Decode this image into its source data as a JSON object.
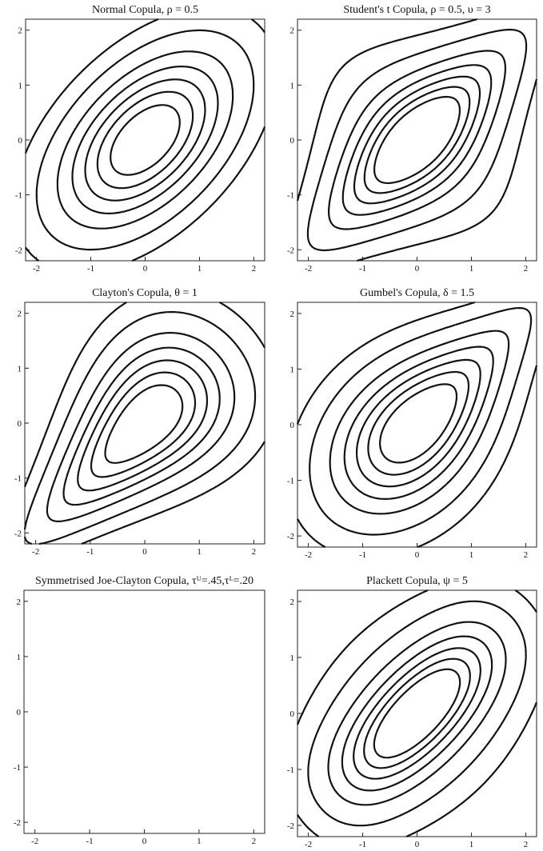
{
  "chart_data": [
    {
      "type": "contour",
      "family": "normal",
      "title": "Normal Copula, ρ = 0.5",
      "params": {
        "rho": 0.5
      },
      "xlim": [
        -2.2,
        2.2
      ],
      "ylim": [
        -2.2,
        2.2
      ],
      "xticks": [
        -2,
        -1,
        0,
        1,
        2
      ],
      "yticks": [
        -2,
        -1,
        0,
        1,
        2
      ],
      "xtick_labels": [
        "-2",
        "-1",
        "0",
        "1",
        "2"
      ],
      "ytick_labels": [
        "-2",
        "-1",
        "0",
        "1",
        "2"
      ],
      "levels": [
        0.01,
        0.025,
        0.05,
        0.075,
        0.1,
        0.125,
        0.15
      ]
    },
    {
      "type": "contour",
      "family": "student_t",
      "title": "Student's t Copula, ρ = 0.5, υ = 3",
      "params": {
        "rho": 0.5,
        "nu": 3
      },
      "xlim": [
        -2.2,
        2.2
      ],
      "ylim": [
        -2.2,
        2.2
      ],
      "xticks": [
        -2,
        -1,
        0,
        1,
        2
      ],
      "yticks": [
        -2,
        -1,
        0,
        1,
        2
      ],
      "xtick_labels": [
        "-2",
        "-1",
        "0",
        "1",
        "2"
      ],
      "ytick_labels": [
        "-2",
        "-1",
        "0",
        "1",
        "2"
      ],
      "levels": [
        0.01,
        0.025,
        0.05,
        0.075,
        0.1,
        0.125,
        0.15
      ]
    },
    {
      "type": "contour",
      "family": "clayton",
      "title": "Clayton's Copula, θ = 1",
      "params": {
        "theta": 1
      },
      "xlim": [
        -2.2,
        2.2
      ],
      "ylim": [
        -2.2,
        2.2
      ],
      "xticks": [
        -2,
        -1,
        0,
        1,
        2
      ],
      "yticks": [
        -2,
        -1,
        0,
        1,
        2
      ],
      "xtick_labels": [
        "-2",
        "-1",
        "0",
        "1",
        "2"
      ],
      "ytick_labels": [
        "-2",
        "-1",
        "0",
        "1",
        "2"
      ],
      "levels": [
        0.01,
        0.025,
        0.05,
        0.075,
        0.1,
        0.125,
        0.15
      ]
    },
    {
      "type": "contour",
      "family": "gumbel",
      "title": "Gumbel's Copula, δ = 1.5",
      "params": {
        "delta": 1.5
      },
      "xlim": [
        -2.2,
        2.2
      ],
      "ylim": [
        -2.2,
        2.2
      ],
      "xticks": [
        -2,
        -1,
        0,
        1,
        2
      ],
      "yticks": [
        -2,
        -1,
        0,
        1,
        2
      ],
      "xtick_labels": [
        "-2",
        "-1",
        "0",
        "1",
        "2"
      ],
      "ytick_labels": [
        "-2",
        "-1",
        "0",
        "1",
        "2"
      ],
      "levels": [
        0.01,
        0.025,
        0.05,
        0.075,
        0.1,
        0.125,
        0.15
      ]
    },
    {
      "type": "contour",
      "family": "sjc",
      "title": "Symmetrised Joe-Clayton Copula, τᵁ=.45,τᴸ=.20",
      "params": {
        "tauU": 0.45,
        "tauL": 0.2
      },
      "xlim": [
        -2.2,
        2.2
      ],
      "ylim": [
        -2.2,
        2.2
      ],
      "xticks": [
        -2,
        -1,
        0,
        1,
        2
      ],
      "yticks": [
        -2,
        -1,
        0,
        1,
        2
      ],
      "xtick_labels": [
        "-2",
        "-1",
        "0",
        "1",
        "2"
      ],
      "ytick_labels": [
        "-2",
        "-1",
        "0",
        "1",
        "2"
      ],
      "levels": [
        0.01,
        0.025,
        0.05,
        0.075,
        0.1,
        0.125,
        0.15
      ]
    },
    {
      "type": "contour",
      "family": "plackett",
      "title": "Plackett Copula, ψ = 5",
      "params": {
        "psi": 5
      },
      "xlim": [
        -2.2,
        2.2
      ],
      "ylim": [
        -2.2,
        2.2
      ],
      "xticks": [
        -2,
        -1,
        0,
        1,
        2
      ],
      "yticks": [
        -2,
        -1,
        0,
        1,
        2
      ],
      "xtick_labels": [
        "-2",
        "-1",
        "0",
        "1",
        "2"
      ],
      "ytick_labels": [
        "-2",
        "-1",
        "0",
        "1",
        "2"
      ],
      "levels": [
        0.01,
        0.025,
        0.05,
        0.075,
        0.1,
        0.125,
        0.15
      ]
    }
  ]
}
